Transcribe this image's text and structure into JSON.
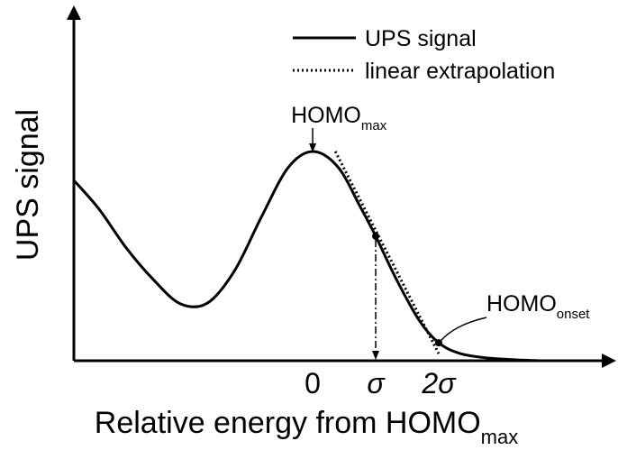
{
  "chart_data": {
    "type": "line",
    "y_label": "UPS signal",
    "x_label": {
      "text": "Relative energy from HOMO",
      "sub": "max"
    },
    "xlim": [
      -3.79,
      4.76
    ],
    "ylim": [
      0,
      1
    ],
    "xticks": [
      0,
      {
        "value": 1,
        "label": "σ"
      },
      {
        "value": 2,
        "label": "2σ"
      }
    ],
    "series": [
      {
        "name": "UPS signal",
        "color": "#000000",
        "style": "solid",
        "x": [
          -3.79,
          -3.39,
          -2.96,
          -2.53,
          -2.1,
          -1.67,
          -1.24,
          -0.81,
          -0.39,
          0,
          0.4,
          0.76,
          1,
          1.33,
          1.69,
          2,
          2.33,
          2.76,
          3.19,
          3.61
        ],
        "values": [
          0.513,
          0.431,
          0.321,
          0.231,
          0.162,
          0.164,
          0.256,
          0.41,
          0.549,
          0.595,
          0.551,
          0.436,
          0.354,
          0.231,
          0.115,
          0.051,
          0.021,
          0.008,
          0.003,
          0
        ]
      },
      {
        "name": "linear extrapolation",
        "color": "#000000",
        "style": "dotted",
        "x": [
          0.36,
          2
        ],
        "values": [
          0.595,
          0.02
        ]
      }
    ],
    "annotations": [
      {
        "text": "HOMO",
        "sub": "max"
      },
      {
        "text": "HOMO",
        "sub": "onset"
      }
    ]
  }
}
